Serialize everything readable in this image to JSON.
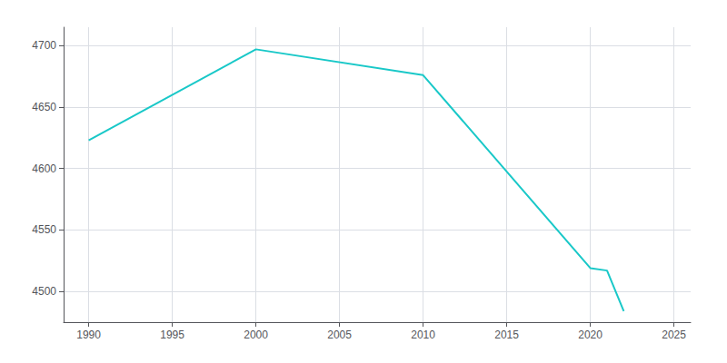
{
  "chart_data": {
    "type": "line",
    "x": [
      1990,
      2000,
      2010,
      2020,
      2021,
      2022
    ],
    "values": [
      4623,
      4697,
      4676,
      4519,
      4517,
      4484
    ],
    "color": "#19C8C8",
    "xlim": [
      1988.5,
      2026
    ],
    "ylim": [
      4475,
      4715
    ],
    "xticks": [
      1990,
      1995,
      2000,
      2005,
      2010,
      2015,
      2020,
      2025
    ],
    "yticks": [
      4500,
      4550,
      4600,
      4650,
      4700
    ],
    "grid": true
  }
}
